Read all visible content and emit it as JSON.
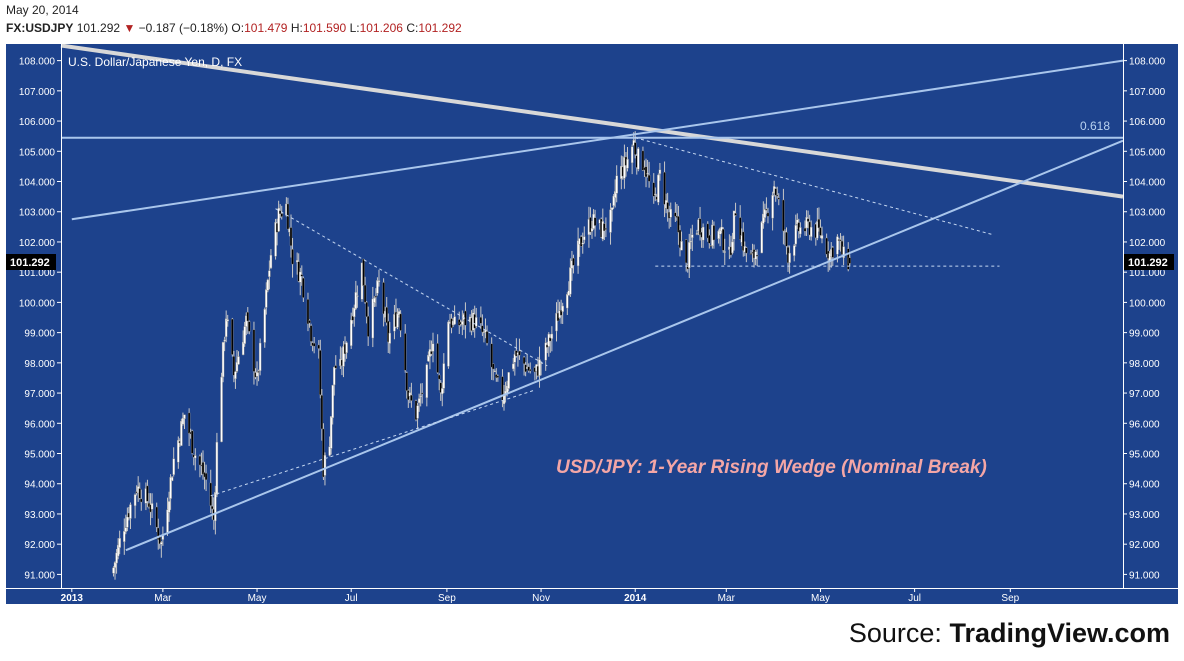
{
  "header": {
    "date": "May 20, 2014",
    "symbol": "FX:USDJPY",
    "last": "101.292",
    "change_arrow": "▼",
    "change": "−0.187 (−0.18%)",
    "o_label": "O:",
    "o_value": "101.479",
    "h_label": "H:",
    "h_value": "101.590",
    "l_label": "L:",
    "l_value": "101.206",
    "c_label": "C:",
    "c_value": "101.292"
  },
  "source": {
    "prefix": "Source: ",
    "brand": "TradingView.com"
  },
  "colors": {
    "background": "#1d428c",
    "candle_up": "#ffffff",
    "candle_down": "#000000",
    "trendline": "#a9c6ec",
    "heavy_trendline": "#d8d8d8",
    "annotation": "#f4a6a6"
  },
  "chart_data": {
    "type": "candlestick",
    "title": "U.S. Dollar/Japanese Yen, D, FX",
    "annotation": "USD/JPY: 1-Year Rising Wedge (Nominal Break)",
    "fib_label": "0.618",
    "fib_level": 105.45,
    "last_price_label": "101.292",
    "last_price": 101.292,
    "xlim": [
      "2012-12-25",
      "2014-11-13"
    ],
    "ylim": [
      90.55,
      108.55
    ],
    "x_ticks": [
      "2013",
      "Mar",
      "May",
      "Jul",
      "Sep",
      "Nov",
      "2014",
      "Mar",
      "May",
      "Jul",
      "Sep"
    ],
    "x_tick_dates": [
      "2013-01-01",
      "2013-03-01",
      "2013-05-01",
      "2013-07-01",
      "2013-09-01",
      "2013-11-01",
      "2014-01-01",
      "2014-03-01",
      "2014-05-01",
      "2014-07-01",
      "2014-09-01"
    ],
    "bold_ticks": [
      "2013",
      "2014"
    ],
    "y_ticks": [
      "91.000",
      "92.000",
      "93.000",
      "94.000",
      "95.000",
      "96.000",
      "97.000",
      "98.000",
      "99.000",
      "100.000",
      "101.000",
      "102.000",
      "103.000",
      "104.000",
      "105.000",
      "106.000",
      "107.000",
      "108.000"
    ],
    "grid": false,
    "close_path": [
      [
        "2013-01-26",
        90.8
      ],
      [
        "2013-02-03",
        92.5
      ],
      [
        "2013-02-12",
        93.9
      ],
      [
        "2013-02-20",
        93.4
      ],
      [
        "2013-02-28",
        92.0
      ],
      [
        "2013-03-08",
        94.8
      ],
      [
        "2013-03-15",
        96.3
      ],
      [
        "2013-03-21",
        95.1
      ],
      [
        "2013-03-29",
        94.1
      ],
      [
        "2013-04-03",
        92.8
      ],
      [
        "2013-04-06",
        96.5
      ],
      [
        "2013-04-11",
        99.6
      ],
      [
        "2013-04-16",
        97.6
      ],
      [
        "2013-04-24",
        99.4
      ],
      [
        "2013-05-01",
        97.4
      ],
      [
        "2013-05-10",
        101.6
      ],
      [
        "2013-05-15",
        102.9
      ],
      [
        "2013-05-20",
        103.2
      ],
      [
        "2013-05-24",
        101.5
      ],
      [
        "2013-05-30",
        100.8
      ],
      [
        "2013-06-05",
        99.0
      ],
      [
        "2013-06-10",
        98.2
      ],
      [
        "2013-06-13",
        94.5
      ],
      [
        "2013-06-17",
        95.5
      ],
      [
        "2013-06-20",
        97.9
      ],
      [
        "2013-06-24",
        97.8
      ],
      [
        "2013-07-03",
        100.0
      ],
      [
        "2013-07-08",
        101.2
      ],
      [
        "2013-07-12",
        99.2
      ],
      [
        "2013-07-19",
        100.6
      ],
      [
        "2013-07-25",
        98.8
      ],
      [
        "2013-08-01",
        99.8
      ],
      [
        "2013-08-07",
        96.9
      ],
      [
        "2013-08-12",
        96.3
      ],
      [
        "2013-08-19",
        97.6
      ],
      [
        "2013-08-23",
        98.9
      ],
      [
        "2013-08-28",
        96.9
      ],
      [
        "2013-09-02",
        99.5
      ],
      [
        "2013-09-06",
        99.2
      ],
      [
        "2013-09-12",
        99.4
      ],
      [
        "2013-09-19",
        99.4
      ],
      [
        "2013-09-26",
        98.8
      ],
      [
        "2013-10-02",
        97.4
      ],
      [
        "2013-10-07",
        96.9
      ],
      [
        "2013-10-15",
        98.3
      ],
      [
        "2013-10-22",
        97.9
      ],
      [
        "2013-10-28",
        97.6
      ],
      [
        "2013-11-04",
        98.4
      ],
      [
        "2013-11-11",
        99.4
      ],
      [
        "2013-11-15",
        100.1
      ],
      [
        "2013-11-22",
        101.2
      ],
      [
        "2013-11-28",
        102.2
      ],
      [
        "2013-12-04",
        102.7
      ],
      [
        "2013-12-10",
        102.4
      ],
      [
        "2013-12-17",
        102.8
      ],
      [
        "2013-12-20",
        104.1
      ],
      [
        "2013-12-26",
        104.6
      ],
      [
        "2013-12-31",
        105.3
      ],
      [
        "2014-01-02",
        104.8
      ],
      [
        "2014-01-07",
        104.6
      ],
      [
        "2014-01-13",
        103.2
      ],
      [
        "2014-01-17",
        104.2
      ],
      [
        "2014-01-23",
        102.8
      ],
      [
        "2014-01-28",
        102.6
      ],
      [
        "2014-02-03",
        101.1
      ],
      [
        "2014-02-07",
        102.2
      ],
      [
        "2014-02-11",
        102.6
      ],
      [
        "2014-02-18",
        102.2
      ],
      [
        "2014-02-25",
        102.3
      ],
      [
        "2014-03-03",
        101.5
      ],
      [
        "2014-03-07",
        103.1
      ],
      [
        "2014-03-13",
        101.7
      ],
      [
        "2014-03-18",
        101.4
      ],
      [
        "2014-03-24",
        102.4
      ],
      [
        "2014-04-01",
        103.9
      ],
      [
        "2014-04-04",
        103.2
      ],
      [
        "2014-04-10",
        101.6
      ],
      [
        "2014-04-16",
        102.4
      ],
      [
        "2014-04-24",
        102.5
      ],
      [
        "2014-05-01",
        102.3
      ],
      [
        "2014-05-07",
        101.6
      ],
      [
        "2014-05-12",
        102.1
      ],
      [
        "2014-05-16",
        101.5
      ],
      [
        "2014-05-20",
        101.292
      ]
    ],
    "trendlines": [
      {
        "name": "heavy descending resistance",
        "style": "heavy",
        "from": [
          "2012-12-25",
          108.5
        ],
        "to": [
          "2014-11-13",
          103.5
        ]
      },
      {
        "name": "long ascending line",
        "style": "solid",
        "from": [
          "2013-01-01",
          102.75
        ],
        "to": [
          "2014-11-13",
          108.0
        ]
      },
      {
        "name": "0.618 retracement",
        "style": "solid",
        "from": [
          "2012-12-25",
          105.45
        ],
        "to": [
          "2014-11-13",
          105.45
        ]
      },
      {
        "name": "rising wedge support",
        "style": "solid",
        "from": [
          "2013-02-05",
          91.8
        ],
        "to": [
          "2014-11-13",
          105.35
        ]
      },
      {
        "name": "dashed support 2013",
        "style": "dashed",
        "from": [
          "2013-04-01",
          93.6
        ],
        "to": [
          "2013-10-28",
          97.1
        ]
      },
      {
        "name": "dashed resistance 2013",
        "style": "dashed",
        "from": [
          "2013-05-13",
          103.1
        ],
        "to": [
          "2013-11-05",
          97.9
        ]
      },
      {
        "name": "dashed resistance 2014",
        "style": "dashed",
        "from": [
          "2014-01-01",
          105.45
        ],
        "to": [
          "2014-08-20",
          102.25
        ]
      },
      {
        "name": "dashed horizontal support",
        "style": "dashed",
        "from": [
          "2014-01-14",
          101.2
        ],
        "to": [
          "2014-08-25",
          101.2
        ]
      }
    ]
  }
}
